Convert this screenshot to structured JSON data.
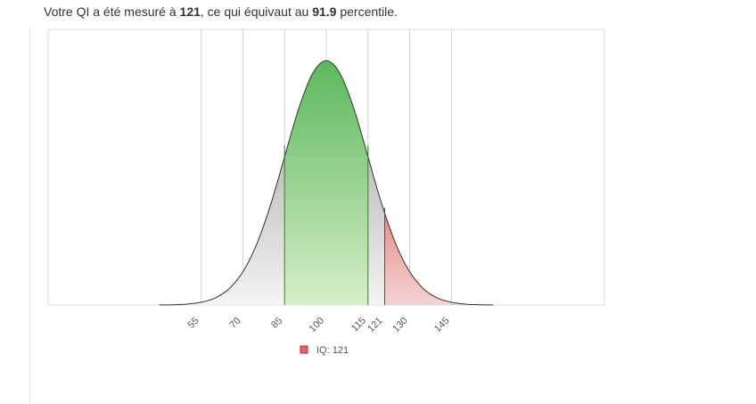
{
  "header": {
    "before": "Votre QI a été mesuré à ",
    "score": "121",
    "middle": ", ce qui équivaut au ",
    "percentile": "91.9",
    "after": " percentile."
  },
  "chart_data": {
    "type": "area",
    "x": [
      40,
      45,
      50,
      55,
      60,
      65,
      70,
      75,
      80,
      85,
      90,
      95,
      100,
      105,
      110,
      115,
      120,
      125,
      130,
      135,
      140,
      145,
      150,
      155,
      160
    ],
    "series": [
      {
        "name": "IQ: 121",
        "color": "#e06666",
        "values": [
          1e-05,
          3e-05,
          0.0001,
          0.0003,
          0.00076,
          0.00175,
          0.0036,
          0.00663,
          0.01093,
          0.01613,
          0.0213,
          0.02516,
          0.0266,
          0.02516,
          0.0213,
          0.01613,
          0.01093,
          0.00663,
          0.0036,
          0.00175,
          0.00076,
          0.0003,
          0.0001,
          3e-05,
          1e-05
        ]
      }
    ],
    "average_range": [
      85,
      115
    ],
    "score": 121,
    "xlim": [
      0,
      200
    ],
    "ylim": [
      0,
      0.03
    ],
    "xticks": [
      55,
      70,
      85,
      100,
      115,
      121,
      130,
      145
    ],
    "grid": true
  }
}
